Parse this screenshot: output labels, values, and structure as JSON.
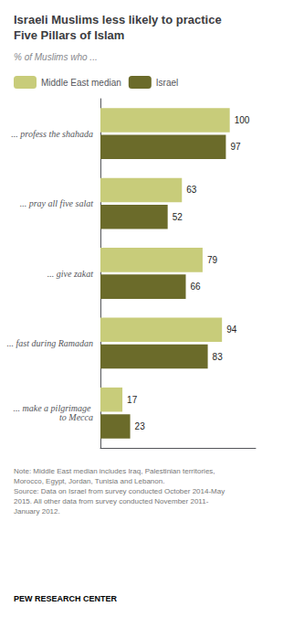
{
  "chart_data": {
    "type": "bar",
    "orientation": "horizontal",
    "title": "Israeli Muslims less likely to practice\nFive Pillars of Islam",
    "subtitle": "% of Muslims who ...",
    "annotations": [
      "Note: Middle East median includes Iraq, Palestinian territories,\nMorocco, Egypt, Jordan, Tunisia and Lebanon.\nSource: Data on Israel from survey conducted October 2014-May\n2015. All other data from survey conducted November 2011-\nJanuary 2012.",
      "PEW RESEARCH CENTER"
    ],
    "categories": [
      "... profess the shahada",
      "... pray all five salat",
      "... give zakat",
      "... fast during Ramadan",
      "... make a pilgrimage to Mecca"
    ],
    "series": [
      {
        "name": "Middle East median",
        "color": "#c8cc7a",
        "values": [
          100,
          63,
          79,
          94,
          17
        ]
      },
      {
        "name": "Israel",
        "color": "#6b6b2a",
        "values": [
          97,
          52,
          66,
          83,
          23
        ]
      }
    ],
    "xlim": [
      0,
      120
    ],
    "data_labels": true,
    "tick_labels": "y",
    "grid": false,
    "legend": "top"
  }
}
